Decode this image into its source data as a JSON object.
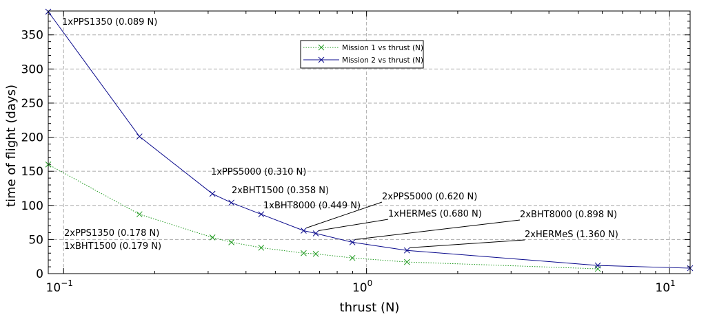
{
  "chart_data": {
    "type": "line",
    "xlabel": "thrust (N)",
    "ylabel": "time of flight (days)",
    "xscale": "log",
    "xlim": [
      0.089,
      11.7
    ],
    "ylim": [
      0,
      385
    ],
    "grid": true,
    "legend_position": "top-center",
    "y_ticks": [
      0,
      50,
      100,
      150,
      200,
      250,
      300,
      350
    ],
    "x_major_ticks": [
      {
        "value": 0.1,
        "base": "10",
        "exponent": "−1"
      },
      {
        "value": 1,
        "base": "10",
        "exponent": "0"
      },
      {
        "value": 10,
        "base": "10",
        "exponent": "1"
      }
    ],
    "series": [
      {
        "name": "Mission 1 vs thrust (N)",
        "color": "#1f9a1f",
        "line_style": "dotted",
        "marker": "x",
        "x": [
          0.089,
          0.178,
          0.31,
          0.358,
          0.449,
          0.62,
          0.68,
          0.898,
          1.36,
          5.8
        ],
        "y": [
          160,
          87,
          53,
          46,
          38,
          30,
          29,
          23,
          17,
          7
        ]
      },
      {
        "name": "Mission 2 vs thrust (N)",
        "color": "#0a0a8c",
        "line_style": "solid",
        "marker": "x",
        "x": [
          0.089,
          0.178,
          0.31,
          0.358,
          0.449,
          0.62,
          0.68,
          0.898,
          1.36,
          5.8,
          11.7
        ],
        "y": [
          384,
          201,
          117,
          104,
          87,
          63,
          59,
          46,
          34,
          12,
          8
        ]
      }
    ],
    "annotations": [
      {
        "text": "1xPPS1350 (0.089 N)"
      },
      {
        "text": "1xPPS5000 (0.310 N)"
      },
      {
        "text": "2xBHT1500 (0.358 N)"
      },
      {
        "text": "1xBHT8000 (0.449 N)"
      },
      {
        "text": "2xPPS5000 (0.620 N)"
      },
      {
        "text": "1xHERMeS (0.680 N)"
      },
      {
        "text": "2xBHT8000 (0.898 N)"
      },
      {
        "text": "2xHERMeS (1.360 N)"
      },
      {
        "text": "2xPPS1350 (0.178 N)"
      },
      {
        "text": "1xBHT1500 (0.179 N)"
      }
    ]
  }
}
